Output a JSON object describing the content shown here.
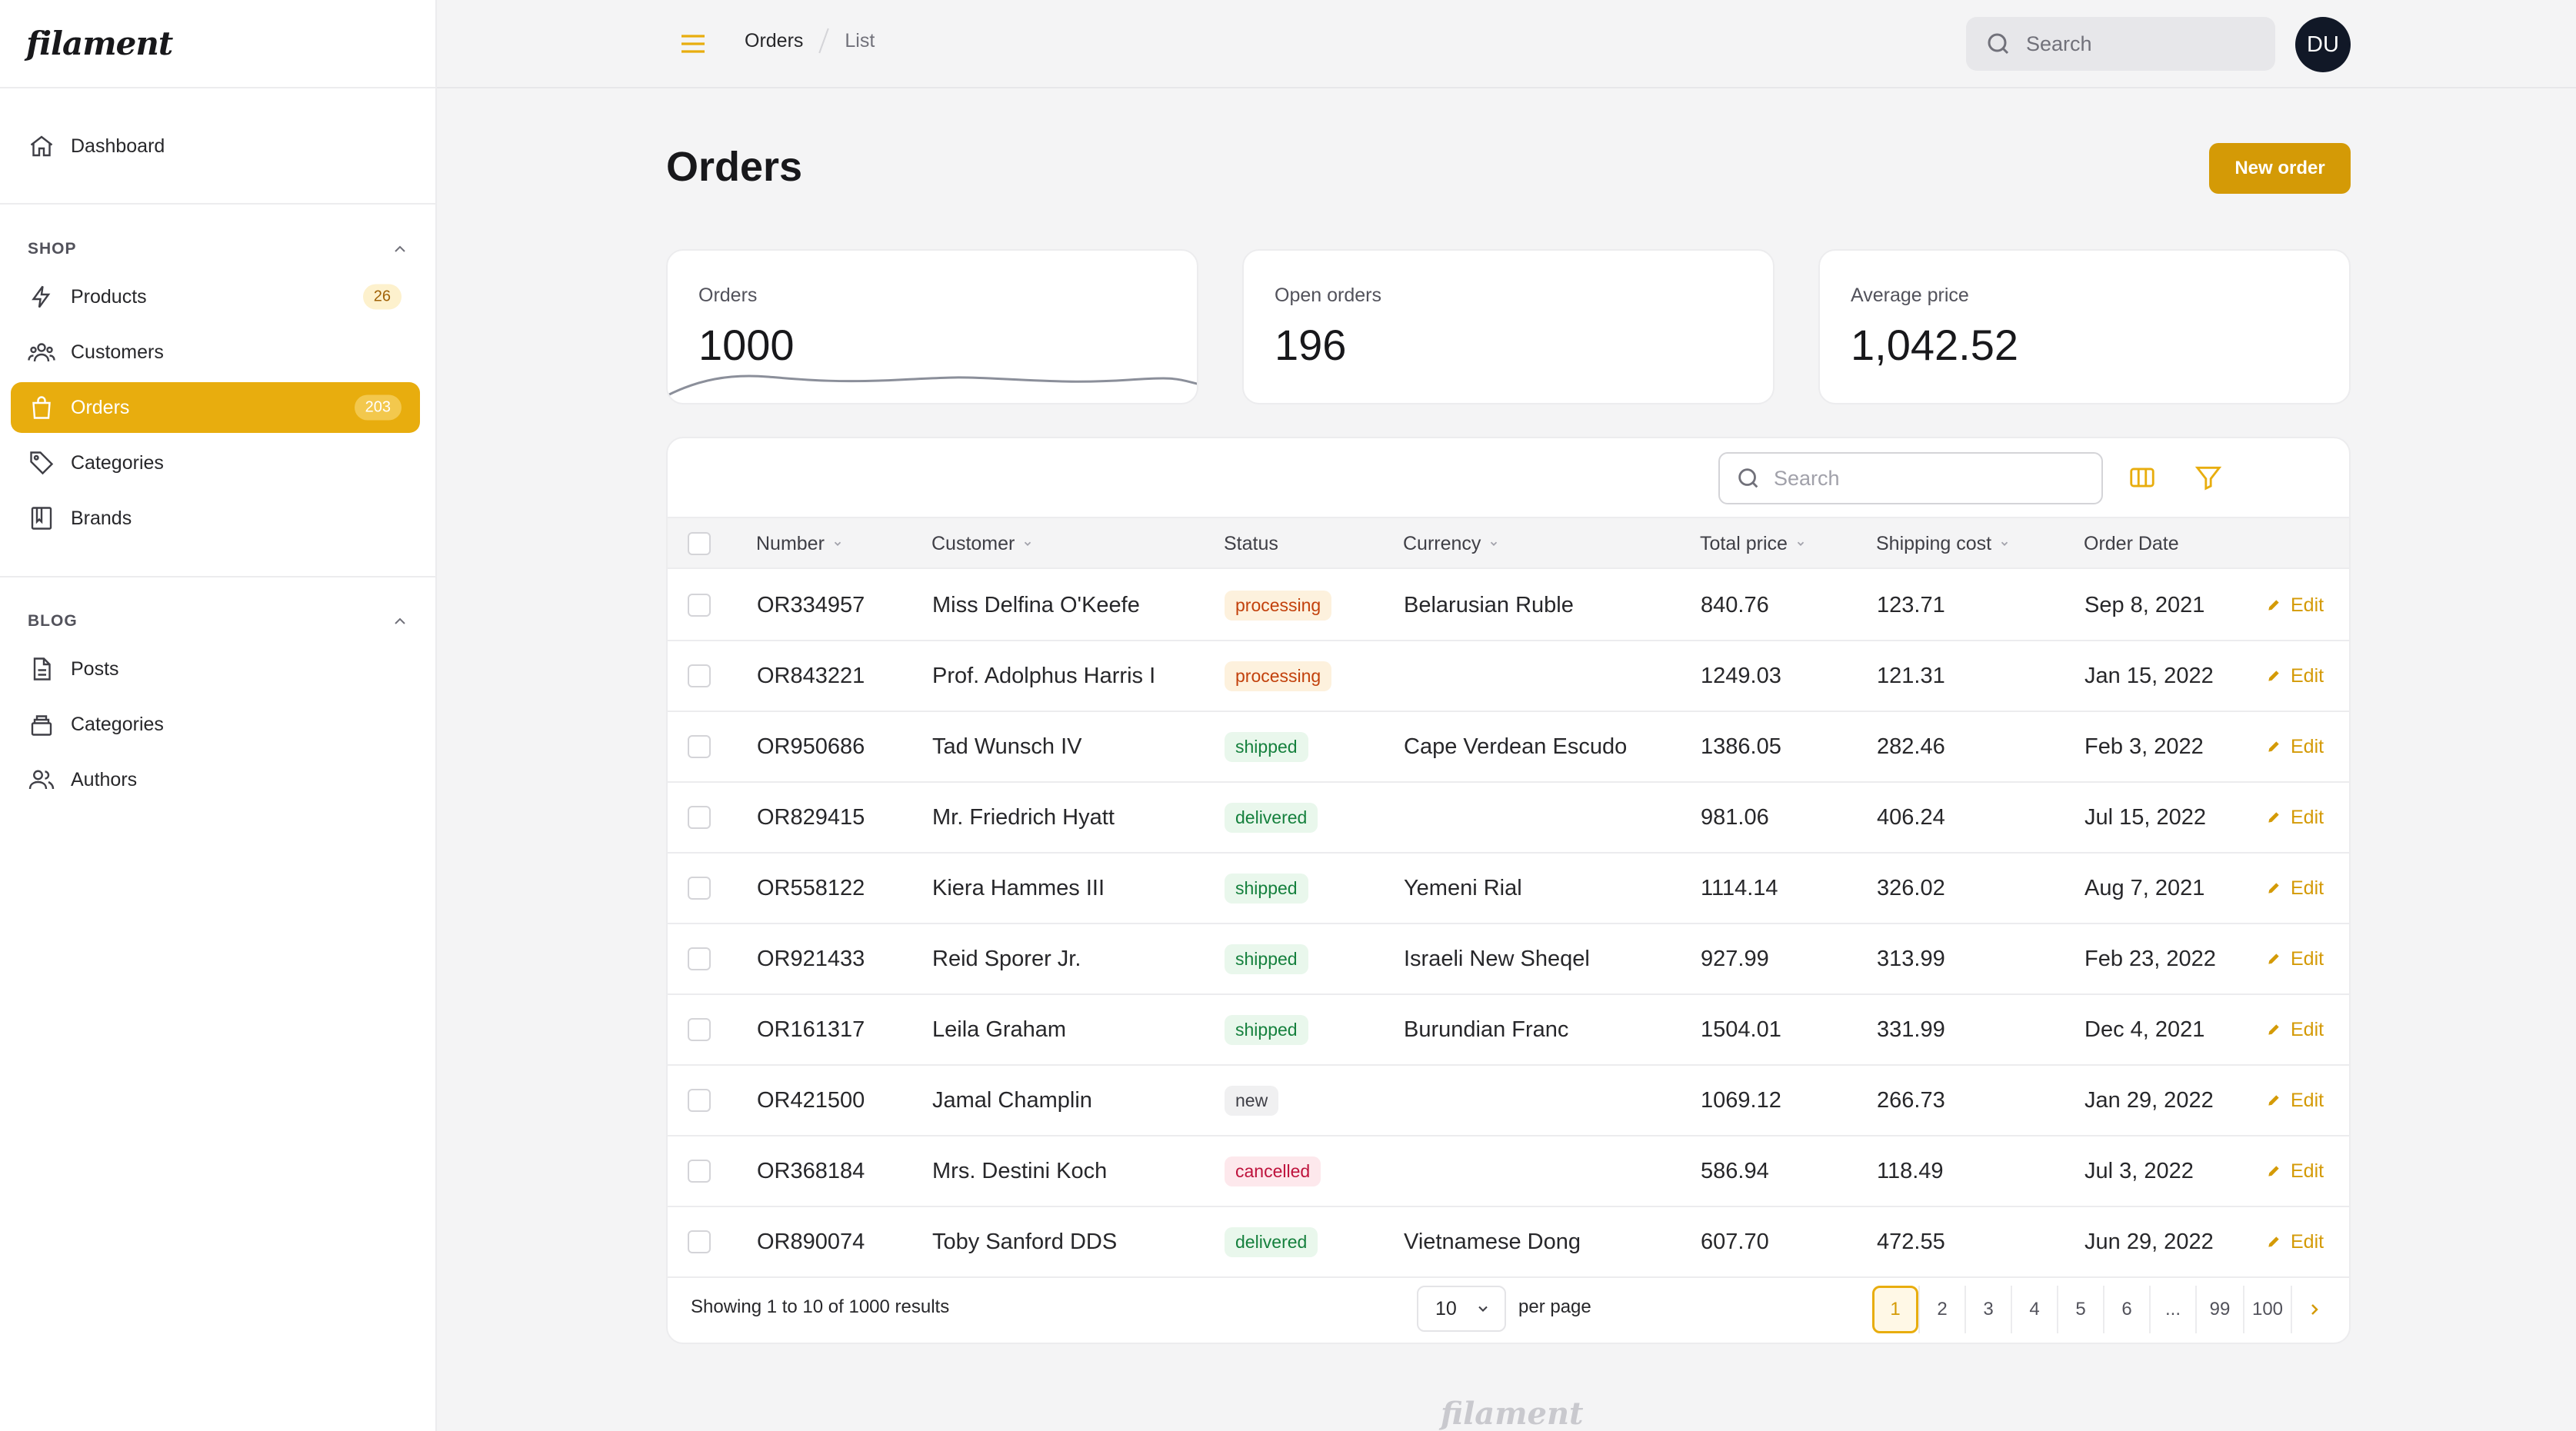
{
  "app": {
    "logo": "filament",
    "footer_logo": "filament"
  },
  "sidebar": {
    "dashboard": {
      "label": "Dashboard",
      "icon": "home-icon"
    },
    "shop": {
      "title": "SHOP",
      "items": [
        {
          "label": "Products",
          "icon": "bolt-icon",
          "badge": "26"
        },
        {
          "label": "Customers",
          "icon": "users-icon",
          "badge": ""
        },
        {
          "label": "Orders",
          "icon": "shopping-bag-icon",
          "badge": "203",
          "active": true
        },
        {
          "label": "Categories",
          "icon": "tag-icon",
          "badge": ""
        },
        {
          "label": "Brands",
          "icon": "book-icon",
          "badge": ""
        }
      ]
    },
    "blog": {
      "title": "BLOG",
      "items": [
        {
          "label": "Posts",
          "icon": "document-icon"
        },
        {
          "label": "Categories",
          "icon": "stack-icon"
        },
        {
          "label": "Authors",
          "icon": "user-group-icon"
        }
      ]
    }
  },
  "topbar": {
    "breadcrumb": [
      "Orders",
      "List"
    ],
    "search_placeholder": "Search",
    "avatar_initials": "DU"
  },
  "page": {
    "title": "Orders",
    "new_button": "New order"
  },
  "stats": [
    {
      "label": "Orders",
      "value": "1000",
      "has_chart": true
    },
    {
      "label": "Open orders",
      "value": "196"
    },
    {
      "label": "Average price",
      "value": "1,042.52"
    }
  ],
  "table": {
    "search_placeholder": "Search",
    "columns": [
      "Number",
      "Customer",
      "Status",
      "Currency",
      "Total price",
      "Shipping cost",
      "Order Date"
    ],
    "edit_label": "Edit",
    "rows": [
      {
        "number": "OR334957",
        "customer": "Miss Delfina O'Keefe",
        "status": "processing",
        "currency": "Belarusian Ruble",
        "total": "840.76",
        "shipping": "123.71",
        "date": "Sep 8, 2021"
      },
      {
        "number": "OR843221",
        "customer": "Prof. Adolphus Harris I",
        "status": "processing",
        "currency": "",
        "total": "1249.03",
        "shipping": "121.31",
        "date": "Jan 15, 2022"
      },
      {
        "number": "OR950686",
        "customer": "Tad Wunsch IV",
        "status": "shipped",
        "currency": "Cape Verdean Escudo",
        "total": "1386.05",
        "shipping": "282.46",
        "date": "Feb 3, 2022"
      },
      {
        "number": "OR829415",
        "customer": "Mr. Friedrich Hyatt",
        "status": "delivered",
        "currency": "",
        "total": "981.06",
        "shipping": "406.24",
        "date": "Jul 15, 2022"
      },
      {
        "number": "OR558122",
        "customer": "Kiera Hammes III",
        "status": "shipped",
        "currency": "Yemeni Rial",
        "total": "1114.14",
        "shipping": "326.02",
        "date": "Aug 7, 2021"
      },
      {
        "number": "OR921433",
        "customer": "Reid Sporer Jr.",
        "status": "shipped",
        "currency": "Israeli New Sheqel",
        "total": "927.99",
        "shipping": "313.99",
        "date": "Feb 23, 2022"
      },
      {
        "number": "OR161317",
        "customer": "Leila Graham",
        "status": "shipped",
        "currency": "Burundian Franc",
        "total": "1504.01",
        "shipping": "331.99",
        "date": "Dec 4, 2021"
      },
      {
        "number": "OR421500",
        "customer": "Jamal Champlin",
        "status": "new",
        "currency": "",
        "total": "1069.12",
        "shipping": "266.73",
        "date": "Jan 29, 2022"
      },
      {
        "number": "OR368184",
        "customer": "Mrs. Destini Koch",
        "status": "cancelled",
        "currency": "",
        "total": "586.94",
        "shipping": "118.49",
        "date": "Jul 3, 2022"
      },
      {
        "number": "OR890074",
        "customer": "Toby Sanford DDS",
        "status": "delivered",
        "currency": "Vietnamese Dong",
        "total": "607.70",
        "shipping": "472.55",
        "date": "Jun 29, 2022"
      }
    ]
  },
  "pagination": {
    "showing": "Showing 1 to 10 of 1000 results",
    "per_page_value": "10",
    "per_page_label": "per page",
    "pages": [
      "1",
      "2",
      "3",
      "4",
      "5",
      "6",
      "...",
      "99",
      "100"
    ],
    "current": "1"
  },
  "colors": {
    "accent": "#e8ad0e",
    "accent_dark": "#d49a06"
  }
}
